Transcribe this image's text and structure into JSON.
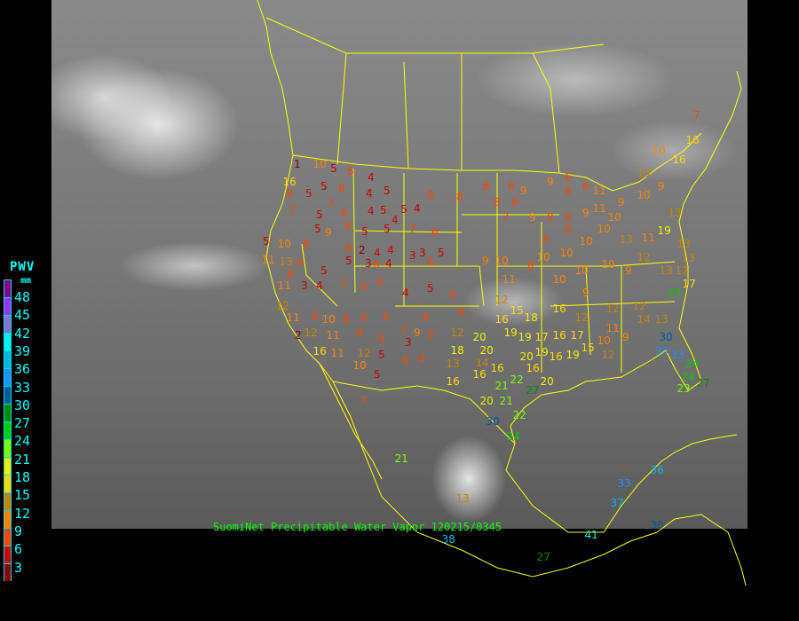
{
  "caption": "SuomiNet Precipitable Water Vapor  120215/0345",
  "legend": {
    "title": "PWV",
    "unit": "mm",
    "labels": [
      "48",
      "45",
      "42",
      "39",
      "36",
      "33",
      "30",
      "27",
      "24",
      "21",
      "18",
      "15",
      "12",
      "9",
      "6",
      "3"
    ],
    "colors": [
      "#8b008b",
      "#9b30ff",
      "#8470d8",
      "#00eeee",
      "#00b8e8",
      "#1e90ff",
      "#005a9a",
      "#008b00",
      "#00cd00",
      "#7cfc00",
      "#eeee00",
      "#ffd700",
      "#c88400",
      "#ff8000",
      "#ff4500",
      "#d00000",
      "#8b0000"
    ]
  },
  "map": {
    "boundary_color": "#ffff00"
  },
  "stations": [
    1,
    10,
    5,
    6,
    16,
    8,
    5,
    5,
    8,
    4,
    5,
    4,
    8,
    8,
    8,
    8,
    9,
    8,
    6,
    7,
    5,
    7,
    6,
    4,
    5,
    5,
    4,
    4,
    5,
    9,
    6,
    5,
    5,
    7,
    6,
    5,
    10,
    6,
    6,
    2,
    4,
    3,
    4,
    3,
    6,
    3,
    5,
    11,
    13,
    6,
    5,
    5,
    6,
    4,
    8,
    11,
    3,
    4,
    7,
    6,
    6,
    4,
    5,
    6,
    12,
    11,
    6,
    10,
    8,
    6,
    6,
    6,
    6,
    12,
    2,
    11,
    6,
    6,
    7,
    9,
    6,
    12,
    16,
    11,
    12,
    5,
    3,
    6,
    6,
    10,
    5,
    7,
    9,
    10,
    11,
    12,
    15,
    18,
    16,
    19,
    20,
    20,
    18,
    19,
    17,
    16,
    19,
    20,
    16,
    14,
    13,
    16,
    16,
    21,
    22,
    16,
    16,
    19,
    15,
    17,
    12,
    16,
    8,
    8,
    10,
    10,
    10,
    10,
    10,
    10,
    9,
    12,
    13,
    12,
    25,
    12,
    14,
    12,
    9,
    11,
    10,
    12,
    9,
    30,
    33,
    33,
    24,
    24,
    27,
    23,
    20,
    21,
    22,
    27,
    20,
    24,
    30,
    36,
    33,
    37,
    30,
    41,
    27,
    13,
    21,
    38,
    8,
    8,
    9,
    11,
    10,
    10,
    10,
    13,
    10,
    16,
    16,
    7,
    13,
    19,
    9,
    13,
    11,
    9,
    9,
    7,
    8,
    8,
    6,
    8,
    11,
    9,
    13,
    13,
    17,
    13
  ]
}
